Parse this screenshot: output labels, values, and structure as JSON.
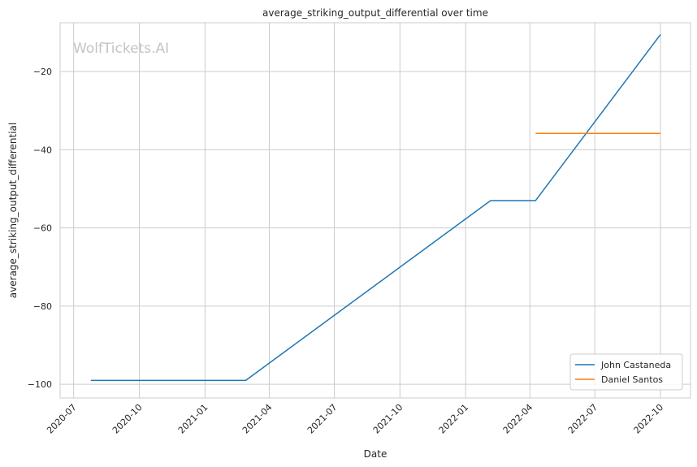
{
  "watermark": "WolfTickets.AI",
  "chart_data": {
    "type": "line",
    "title": "average_striking_output_differential over time",
    "xlabel": "Date",
    "ylabel": "average_striking_output_differential",
    "x_tick_labels": [
      "2020-07",
      "2020-10",
      "2021-01",
      "2021-04",
      "2021-07",
      "2021-10",
      "2022-01",
      "2022-04",
      "2022-07",
      "2022-10"
    ],
    "y_tick_values": [
      -100,
      -80,
      -60,
      -40,
      -20
    ],
    "y_tick_labels": [
      "−100",
      "−80",
      "−60",
      "−40",
      "−20"
    ],
    "xlim": [
      "2020-06-12",
      "2022-11-12"
    ],
    "ylim": [
      -103.5,
      -7.5
    ],
    "grid": true,
    "legend_position": "bottom-right",
    "series": [
      {
        "name": "John Castaneda",
        "color": "#1f77b4",
        "x": [
          "2020-07-25",
          "2021-02-27",
          "2022-02-05",
          "2022-04-09",
          "2022-10-01"
        ],
        "y": [
          -99,
          -99,
          -53,
          -53,
          -10.5
        ]
      },
      {
        "name": "Daniel Santos",
        "color": "#ff7f0e",
        "x": [
          "2022-04-09",
          "2022-10-01"
        ],
        "y": [
          -35.8,
          -35.8
        ]
      }
    ]
  }
}
